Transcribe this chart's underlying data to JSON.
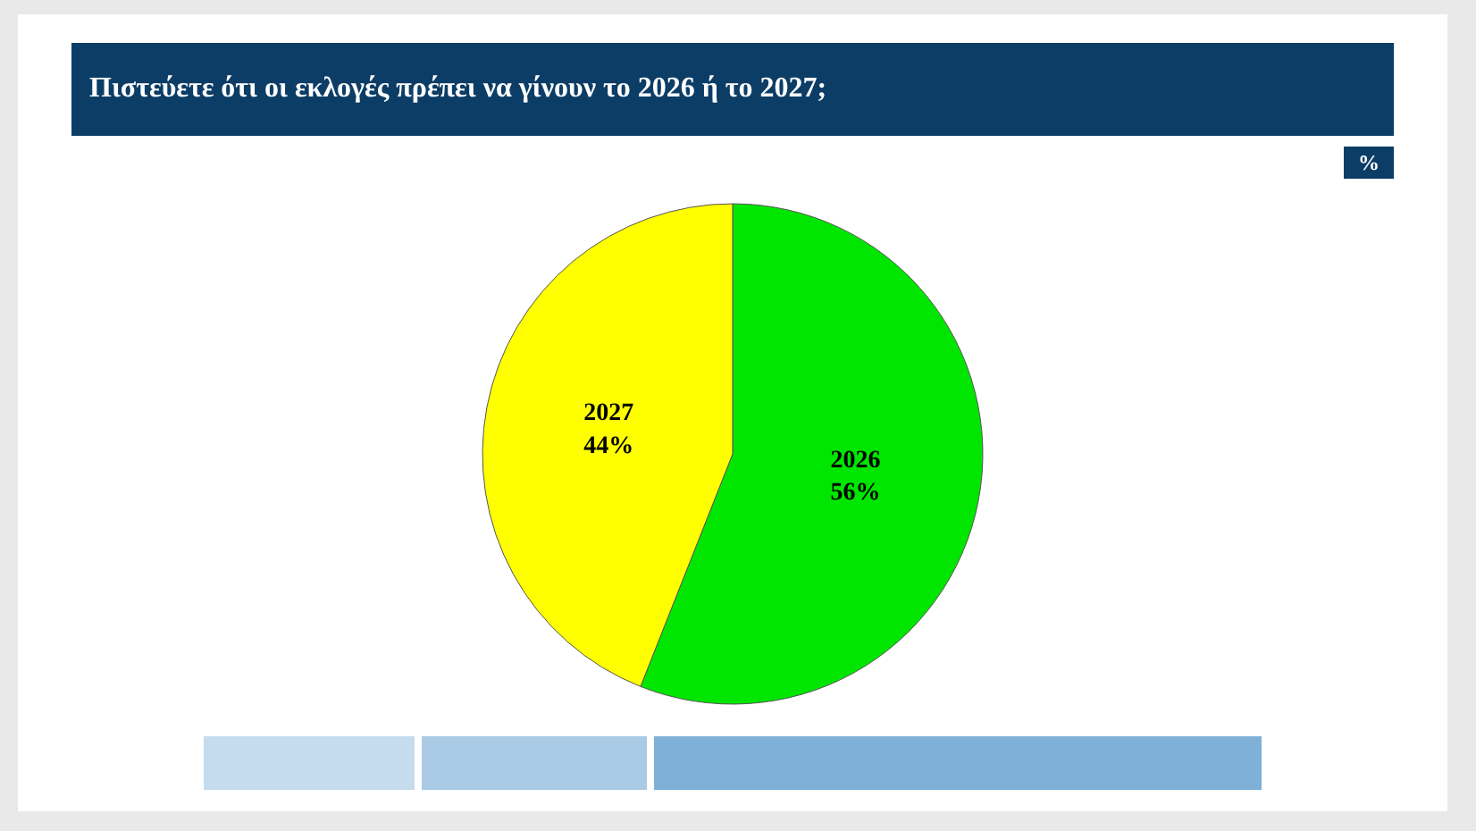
{
  "chart_data": {
    "type": "pie",
    "title": "Πιστεύετε ότι οι εκλογές πρέπει να γίνουν το 2026 ή το 2027;",
    "annotations": [
      "%"
    ],
    "categories": [
      "2026",
      "2027"
    ],
    "values": [
      56,
      44
    ],
    "value_labels": [
      "56%",
      "44%"
    ],
    "colors": [
      "#00e600",
      "#ffff00"
    ],
    "legend": false
  }
}
